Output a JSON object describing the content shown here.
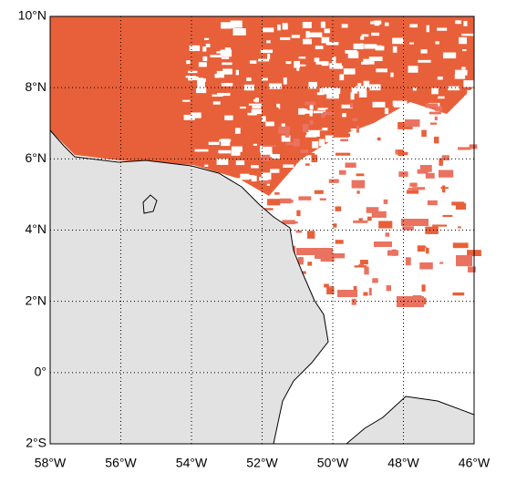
{
  "map": {
    "xlim": [
      -58,
      -46
    ],
    "ylim": [
      -2,
      10
    ],
    "xticks": [
      {
        "value": -58,
        "label": "58°W"
      },
      {
        "value": -56,
        "label": "56°W"
      },
      {
        "value": -54,
        "label": "54°W"
      },
      {
        "value": -52,
        "label": "52°W"
      },
      {
        "value": -50,
        "label": "50°W"
      },
      {
        "value": -48,
        "label": "48°W"
      },
      {
        "value": -46,
        "label": "46°W"
      }
    ],
    "yticks": [
      {
        "value": -2,
        "label": "2°S"
      },
      {
        "value": 0,
        "label": "0°"
      },
      {
        "value": 2,
        "label": "2°N"
      },
      {
        "value": 4,
        "label": "4°N"
      },
      {
        "value": 6,
        "label": "6°N"
      },
      {
        "value": 8,
        "label": "8°N"
      },
      {
        "value": 10,
        "label": "10°N"
      }
    ],
    "grid": true
  }
}
